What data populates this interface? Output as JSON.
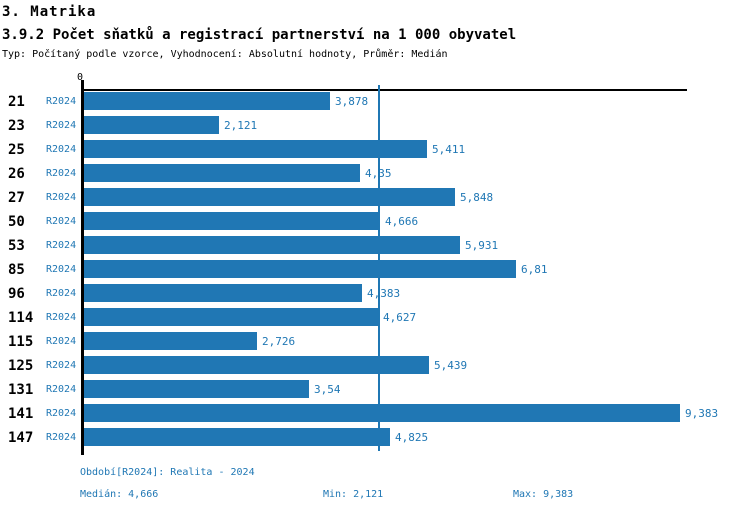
{
  "header": {
    "title": "3. Matrika",
    "subtitle": "3.9.2 Počet sňatků a registrací partnerství na 1 000 obyvatel",
    "meta": "Typ: Počítaný podle vzorce, Vyhodnocení: Absolutní hodnoty, Průměr: Medián"
  },
  "chart_data": {
    "type": "bar",
    "orientation": "horizontal",
    "title": "3.9.2 Počet sňatků a registrací partnerství na 1 000 obyvatel",
    "categories": [
      "21",
      "23",
      "25",
      "26",
      "27",
      "50",
      "53",
      "85",
      "96",
      "114",
      "115",
      "125",
      "131",
      "141",
      "147"
    ],
    "series": [
      {
        "name": "R2024",
        "values": [
          3.878,
          2.121,
          5.411,
          4.35,
          5.848,
          4.666,
          5.931,
          6.81,
          4.383,
          4.627,
          2.726,
          5.439,
          3.54,
          9.383,
          4.825
        ],
        "value_labels": [
          "3,878",
          "2,121",
          "5,411",
          "4,35",
          "5,848",
          "4,666",
          "5,931",
          "6,81",
          "4,383",
          "4,627",
          "2,726",
          "5,439",
          "3,54",
          "9,383",
          "4,825"
        ]
      }
    ],
    "series_row_label": "R2024",
    "xlim": [
      0,
      9.5
    ],
    "origin_tick_label": "0",
    "median_value": 4.666,
    "grid": false,
    "legend_position": "none",
    "bar_color": "#2077b4",
    "median_line_color": "#1f77b4",
    "text_accent_color": "#1f77b4"
  },
  "footer": {
    "period": "Období[R2024]: Realita - 2024",
    "median": "Medián: 4,666",
    "min": "Min: 2,121",
    "max": "Max: 9,383"
  }
}
